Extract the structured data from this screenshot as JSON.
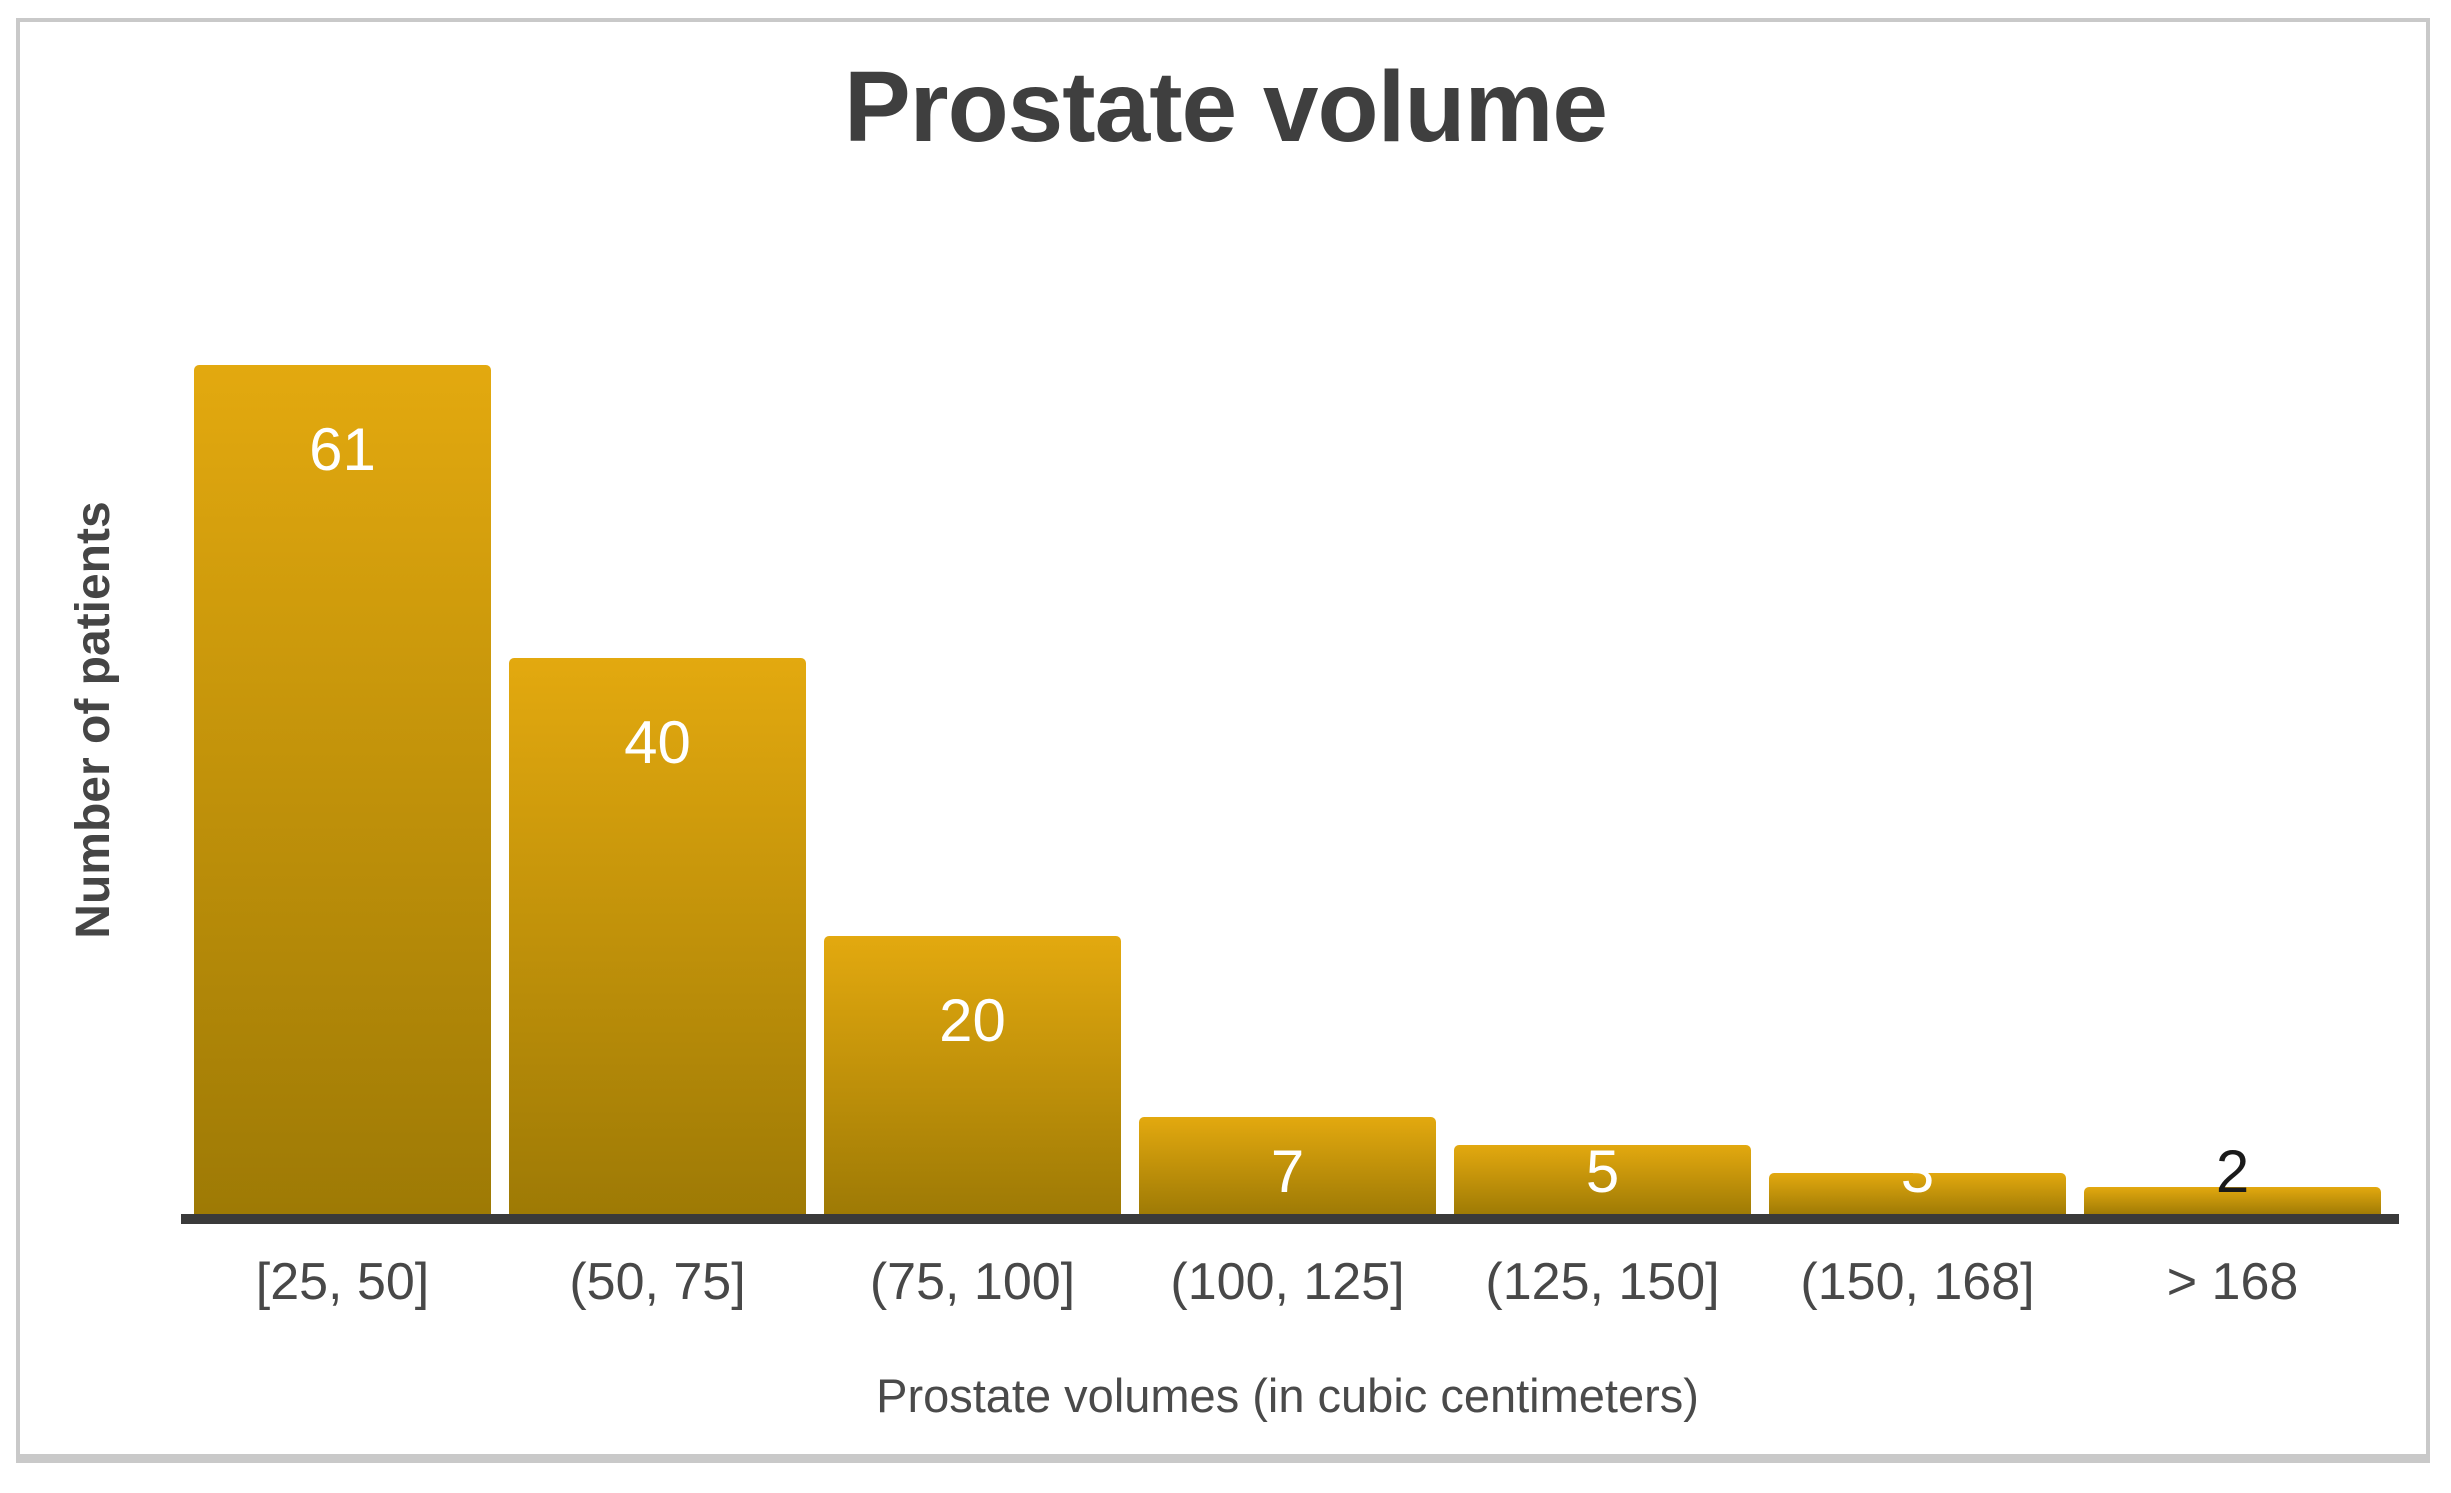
{
  "chart_data": {
    "type": "bar",
    "title": "Prostate volume",
    "xlabel": "Prostate volumes (in cubic centimeters)",
    "ylabel": "Number of patients",
    "categories": [
      "[25, 50]",
      "(50, 75]",
      "(75, 100]",
      "(100, 125]",
      "(125, 150]",
      "(150, 168]",
      "> 168"
    ],
    "values": [
      61,
      40,
      20,
      7,
      5,
      3,
      2
    ],
    "ylim": [
      0,
      61
    ],
    "grid": false,
    "legend": "none",
    "value_label_colors": [
      "#ffffff",
      "#ffffff",
      "#ffffff",
      "#ffffff",
      "#ffffff",
      "#ffffff",
      "#1a1a1a"
    ],
    "colors": {
      "bar_gradient_top": "#e3a90f",
      "bar_gradient_bottom": "#9e7a05",
      "axis_line": "#3a3a3a",
      "title": "#3f3f3f",
      "tick_labels": "#484848",
      "axis_titles": "#4a4a4a",
      "frame_border": "#c9c9c9"
    }
  }
}
